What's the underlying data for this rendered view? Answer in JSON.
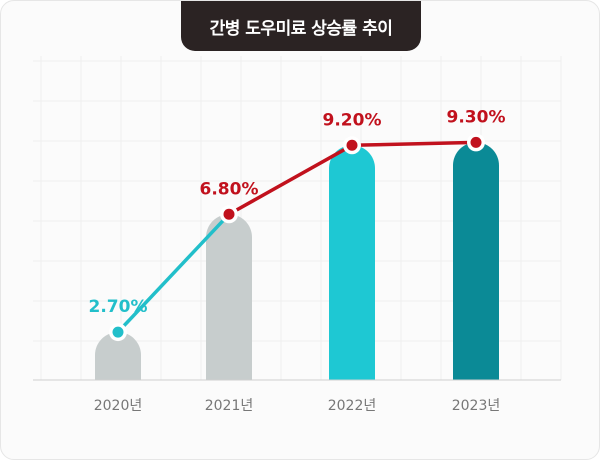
{
  "chart_data": {
    "type": "bar",
    "title": "간병 도우미료 상승률 추이",
    "categories": [
      "2020년",
      "2021년",
      "2022년",
      "2023년"
    ],
    "values": [
      2.7,
      6.8,
      9.2,
      9.3
    ],
    "value_labels": [
      "2.70%",
      "6.80%",
      "9.20%",
      "9.30%"
    ],
    "unit": "%",
    "overlay": "line",
    "grid": true,
    "legend": "none",
    "colors": {
      "bars": [
        "#c7cdcd",
        "#c7cdcd",
        "#1ec8d3",
        "#0b8a96"
      ],
      "line_rise": "#22bfca",
      "line_main": "#c1111d",
      "labels": [
        "#22bfca",
        "#c1111d",
        "#c1111d",
        "#c1111d"
      ],
      "grid": "#efefef",
      "axis": "#cfcfcf",
      "tick_text": "#777777"
    }
  }
}
